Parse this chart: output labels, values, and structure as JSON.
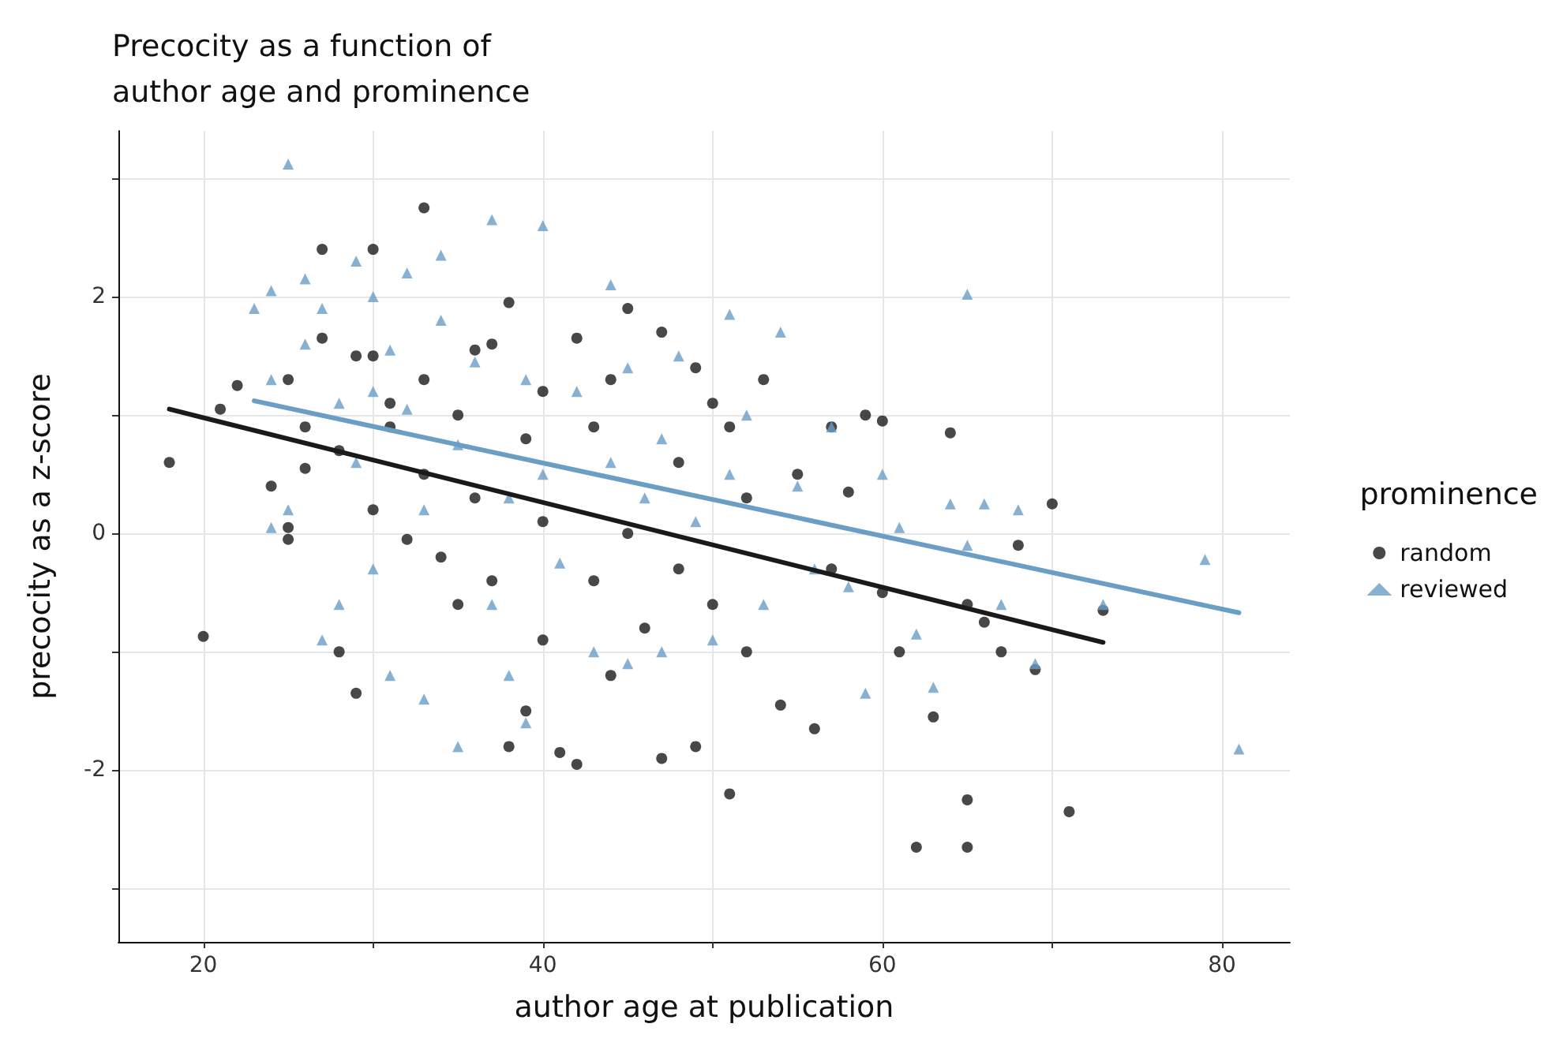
{
  "chart_data": {
    "type": "scatter",
    "title": "Precocity as a function of\nauthor age and prominence",
    "xlabel": "author age at publication",
    "ylabel": "precocity as a z-score",
    "legend_title": "prominence",
    "legend": "right",
    "grid": true,
    "xlim": [
      15,
      84
    ],
    "ylim": [
      -3.45,
      3.4
    ],
    "xticks": [
      20,
      {
        "value": 30,
        "label": null
      },
      40,
      {
        "value": 50,
        "label": null
      },
      60,
      {
        "value": 70,
        "label": null
      },
      80
    ],
    "yticks": [
      {
        "value": -3,
        "label": null
      },
      -2,
      {
        "value": -1,
        "label": null
      },
      0,
      {
        "value": 1,
        "label": null
      },
      2,
      {
        "value": 3,
        "label": null
      }
    ],
    "series": [
      {
        "name": "random",
        "type": "scatter",
        "marker": "circle",
        "color": "#1a1a1a",
        "x": [
          18,
          20,
          21,
          22,
          24,
          25,
          25,
          25,
          26,
          26,
          27,
          27,
          28,
          28,
          29,
          29,
          30,
          30,
          30,
          31,
          31,
          32,
          33,
          33,
          33,
          34,
          35,
          35,
          36,
          36,
          37,
          37,
          38,
          38,
          39,
          39,
          40,
          40,
          40,
          41,
          42,
          42,
          43,
          43,
          44,
          44,
          45,
          45,
          46,
          47,
          47,
          48,
          48,
          49,
          49,
          50,
          50,
          51,
          51,
          52,
          52,
          53,
          54,
          55,
          56,
          57,
          57,
          58,
          59,
          60,
          60,
          61,
          62,
          63,
          64,
          65,
          65,
          65,
          66,
          67,
          68,
          69,
          70,
          71,
          73
        ],
        "values": [
          0.6,
          -0.87,
          1.05,
          1.25,
          0.4,
          1.3,
          0.05,
          -0.05,
          0.9,
          0.55,
          2.4,
          1.65,
          0.7,
          -1.0,
          1.5,
          -1.35,
          2.4,
          1.5,
          0.2,
          1.1,
          0.9,
          -0.05,
          2.75,
          1.3,
          0.5,
          -0.2,
          1.0,
          -0.6,
          1.55,
          0.3,
          1.6,
          -0.4,
          1.95,
          -1.8,
          0.8,
          -1.5,
          1.2,
          0.1,
          -0.9,
          -1.85,
          1.65,
          -1.95,
          0.9,
          -0.4,
          1.3,
          -1.2,
          1.9,
          0.0,
          -0.8,
          1.7,
          -1.9,
          0.6,
          -0.3,
          1.4,
          -1.8,
          1.1,
          -0.6,
          0.9,
          -2.2,
          0.3,
          -1.0,
          1.3,
          -1.45,
          0.5,
          -1.65,
          0.9,
          -0.3,
          0.35,
          1.0,
          0.95,
          -0.5,
          -1.0,
          -2.65,
          -1.55,
          0.85,
          -2.25,
          -2.65,
          -0.6,
          -0.75,
          -1.0,
          -0.1,
          -1.15,
          0.25,
          -2.35,
          -0.65
        ]
      },
      {
        "name": "reviewed",
        "type": "scatter",
        "marker": "triangle",
        "color": "#6a9ec5",
        "x": [
          23,
          24,
          24,
          24,
          25,
          25,
          26,
          26,
          27,
          27,
          28,
          28,
          29,
          29,
          30,
          30,
          30,
          31,
          31,
          32,
          32,
          33,
          33,
          34,
          34,
          35,
          35,
          36,
          37,
          37,
          38,
          38,
          39,
          39,
          40,
          40,
          41,
          42,
          43,
          44,
          44,
          45,
          45,
          46,
          47,
          47,
          48,
          49,
          50,
          51,
          51,
          52,
          53,
          54,
          55,
          56,
          57,
          58,
          59,
          60,
          61,
          62,
          63,
          64,
          65,
          65,
          66,
          67,
          68,
          69,
          73,
          79,
          81
        ],
        "values": [
          1.9,
          2.05,
          1.3,
          0.05,
          3.12,
          0.2,
          2.15,
          1.6,
          1.9,
          -0.9,
          -0.6,
          1.1,
          2.3,
          0.6,
          2.0,
          1.2,
          -0.3,
          1.55,
          -1.2,
          1.05,
          2.2,
          -1.4,
          0.2,
          1.8,
          2.35,
          0.75,
          -1.8,
          1.45,
          2.65,
          -0.6,
          0.3,
          -1.2,
          1.3,
          -1.6,
          2.6,
          0.5,
          -0.25,
          1.2,
          -1.0,
          2.1,
          0.6,
          1.4,
          -1.1,
          0.3,
          0.8,
          -1.0,
          1.5,
          0.1,
          -0.9,
          1.85,
          0.5,
          1.0,
          -0.6,
          1.7,
          0.4,
          -0.3,
          0.9,
          -0.45,
          -1.35,
          0.5,
          0.05,
          -0.85,
          -1.3,
          0.25,
          2.02,
          -0.1,
          0.25,
          -0.6,
          0.2,
          -1.1,
          -0.6,
          -0.22,
          -1.82
        ]
      },
      {
        "type": "line",
        "marker": "none",
        "line_style": "solid",
        "color": "#1a1a1a",
        "x": [
          18,
          73
        ],
        "values": [
          1.05,
          -0.92
        ]
      },
      {
        "type": "line",
        "marker": "none",
        "line_style": "solid",
        "color": "#6a9ec5",
        "x": [
          23,
          81
        ],
        "values": [
          1.12,
          -0.67
        ]
      }
    ]
  }
}
